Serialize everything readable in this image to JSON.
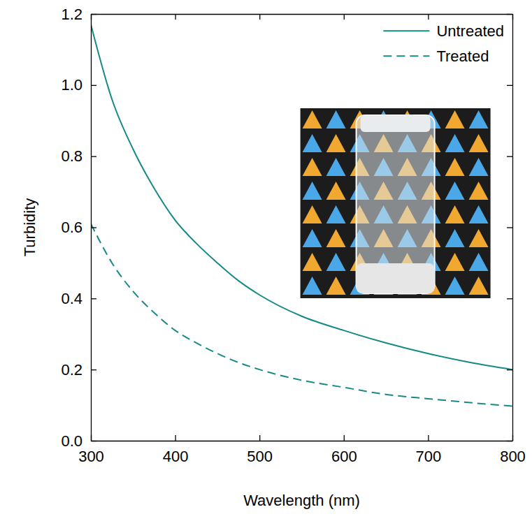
{
  "chart_data": {
    "type": "line",
    "x_label": "Wavelength (nm)",
    "y_label": "Turbidity",
    "x": [
      300,
      325,
      350,
      375,
      400,
      425,
      450,
      475,
      500,
      550,
      600,
      650,
      700,
      750,
      800
    ],
    "series": [
      {
        "name": "Untreated",
        "color": "#178a86",
        "line_style": "solid",
        "values": [
          1.17,
          0.96,
          0.82,
          0.71,
          0.62,
          0.555,
          0.5,
          0.45,
          0.41,
          0.35,
          0.31,
          0.275,
          0.245,
          0.22,
          0.2
        ]
      },
      {
        "name": "Treated",
        "color": "#178a86",
        "line_style": "dashed",
        "values": [
          0.61,
          0.5,
          0.42,
          0.36,
          0.31,
          0.275,
          0.245,
          0.22,
          0.2,
          0.17,
          0.15,
          0.13,
          0.118,
          0.107,
          0.097
        ]
      }
    ],
    "xlim": [
      300,
      800
    ],
    "xticks": [
      300,
      400,
      500,
      600,
      700,
      800
    ],
    "ylim": [
      0,
      1.2
    ],
    "yticks": [
      {
        "value": 0,
        "label": "0.0"
      },
      0.2,
      0.4,
      0.6,
      0.8,
      {
        "value": 1,
        "label": "1.0"
      },
      1.2
    ],
    "legend": "upper right",
    "grid": false
  }
}
